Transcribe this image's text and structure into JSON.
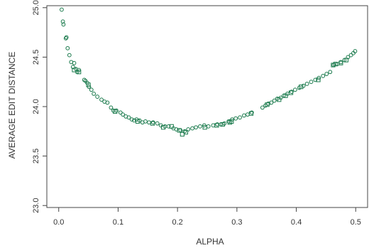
{
  "chart_data": {
    "type": "scatter",
    "title": "",
    "xlabel": "ALPHA",
    "ylabel": "AVERAGE EDIT DISTANCE",
    "xlim": [
      -0.02,
      0.52
    ],
    "ylim": [
      22.98,
      25.02
    ],
    "x_ticks": [
      0.0,
      0.1,
      0.2,
      0.3,
      0.4,
      0.5
    ],
    "x_tick_labels": [
      "0.0",
      "0.1",
      "0.2",
      "0.3",
      "0.4",
      "0.5"
    ],
    "y_ticks": [
      23.0,
      23.5,
      24.0,
      24.5,
      25.0
    ],
    "y_tick_labels": [
      "23.0",
      "23.5",
      "24.0",
      "24.5",
      "25.0"
    ],
    "grid": false,
    "marker_color": "#1a7a4c",
    "series": [
      {
        "marker": "circle",
        "points": [
          [
            0.005,
            24.98
          ],
          [
            0.007,
            24.86
          ],
          [
            0.008,
            24.83
          ],
          [
            0.012,
            24.69
          ],
          [
            0.013,
            24.7
          ],
          [
            0.015,
            24.59
          ],
          [
            0.018,
            24.52
          ],
          [
            0.021,
            24.45
          ],
          [
            0.024,
            24.4
          ],
          [
            0.026,
            24.44
          ],
          [
            0.029,
            24.38
          ],
          [
            0.031,
            24.35
          ],
          [
            0.034,
            24.37
          ],
          [
            0.043,
            24.27
          ],
          [
            0.045,
            24.26
          ],
          [
            0.048,
            24.24
          ],
          [
            0.051,
            24.2
          ],
          [
            0.055,
            24.17
          ],
          [
            0.059,
            24.13
          ],
          [
            0.065,
            24.1
          ],
          [
            0.072,
            24.07
          ],
          [
            0.077,
            24.05
          ],
          [
            0.082,
            24.04
          ],
          [
            0.088,
            23.99
          ],
          [
            0.092,
            23.96
          ],
          [
            0.097,
            23.96
          ],
          [
            0.104,
            23.94
          ],
          [
            0.108,
            23.92
          ],
          [
            0.113,
            23.9
          ],
          [
            0.118,
            23.89
          ],
          [
            0.123,
            23.87
          ],
          [
            0.127,
            23.86
          ],
          [
            0.131,
            23.87
          ],
          [
            0.136,
            23.86
          ],
          [
            0.141,
            23.84
          ],
          [
            0.146,
            23.85
          ],
          [
            0.152,
            23.84
          ],
          [
            0.159,
            23.84
          ],
          [
            0.166,
            23.83
          ],
          [
            0.172,
            23.81
          ],
          [
            0.179,
            23.8
          ],
          [
            0.185,
            23.8
          ],
          [
            0.193,
            23.78
          ],
          [
            0.198,
            23.77
          ],
          [
            0.205,
            23.76
          ],
          [
            0.212,
            23.75
          ],
          [
            0.218,
            23.77
          ],
          [
            0.225,
            23.78
          ],
          [
            0.231,
            23.79
          ],
          [
            0.238,
            23.8
          ],
          [
            0.245,
            23.81
          ],
          [
            0.252,
            23.8
          ],
          [
            0.26,
            23.81
          ],
          [
            0.267,
            23.82
          ],
          [
            0.273,
            23.82
          ],
          [
            0.279,
            23.83
          ],
          [
            0.286,
            23.85
          ],
          [
            0.292,
            23.87
          ],
          [
            0.298,
            23.88
          ],
          [
            0.305,
            23.89
          ],
          [
            0.312,
            23.91
          ],
          [
            0.318,
            23.92
          ],
          [
            0.325,
            23.94
          ],
          [
            0.343,
            23.99
          ],
          [
            0.348,
            24.01
          ],
          [
            0.353,
            24.03
          ],
          [
            0.358,
            24.04
          ],
          [
            0.363,
            24.06
          ],
          [
            0.368,
            24.08
          ],
          [
            0.374,
            24.09
          ],
          [
            0.379,
            24.11
          ],
          [
            0.385,
            24.13
          ],
          [
            0.392,
            24.15
          ],
          [
            0.398,
            24.17
          ],
          [
            0.405,
            24.19
          ],
          [
            0.412,
            24.21
          ],
          [
            0.418,
            24.23
          ],
          [
            0.425,
            24.25
          ],
          [
            0.432,
            24.27
          ],
          [
            0.438,
            24.29
          ],
          [
            0.445,
            24.31
          ],
          [
            0.451,
            24.33
          ],
          [
            0.457,
            24.35
          ],
          [
            0.463,
            24.42
          ],
          [
            0.469,
            24.43
          ],
          [
            0.475,
            24.45
          ],
          [
            0.481,
            24.47
          ],
          [
            0.487,
            24.5
          ],
          [
            0.492,
            24.52
          ],
          [
            0.496,
            24.54
          ],
          [
            0.499,
            24.56
          ]
        ]
      },
      {
        "marker": "square",
        "points": [
          [
            0.026,
            24.37
          ],
          [
            0.034,
            24.35
          ],
          [
            0.05,
            24.22
          ],
          [
            0.095,
            23.95
          ],
          [
            0.133,
            23.85
          ],
          [
            0.158,
            23.83
          ],
          [
            0.176,
            23.79
          ],
          [
            0.19,
            23.8
          ],
          [
            0.203,
            23.76
          ],
          [
            0.208,
            23.72
          ],
          [
            0.214,
            23.74
          ],
          [
            0.246,
            23.79
          ],
          [
            0.266,
            23.81
          ],
          [
            0.276,
            23.82
          ],
          [
            0.288,
            23.84
          ],
          [
            0.291,
            23.85
          ],
          [
            0.324,
            23.93
          ],
          [
            0.351,
            24.02
          ],
          [
            0.371,
            24.07
          ],
          [
            0.382,
            24.11
          ],
          [
            0.391,
            24.14
          ],
          [
            0.408,
            24.2
          ],
          [
            0.437,
            24.27
          ],
          [
            0.462,
            24.42
          ],
          [
            0.466,
            24.43
          ],
          [
            0.475,
            24.44
          ],
          [
            0.484,
            24.47
          ]
        ]
      }
    ]
  }
}
